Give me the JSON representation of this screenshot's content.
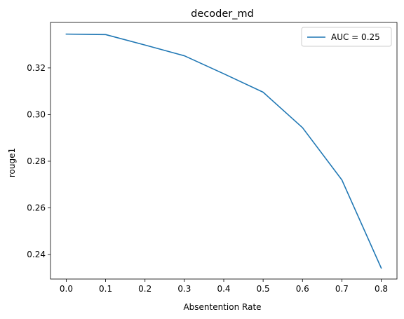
{
  "chart_data": {
    "type": "line",
    "title": "decoder_md",
    "xlabel": "Absentention Rate",
    "ylabel": "rouge1",
    "xlim": [
      -0.04,
      0.84
    ],
    "ylim": [
      0.2295,
      0.3395
    ],
    "xticks": [
      0.0,
      0.1,
      0.2,
      0.3,
      0.4,
      0.5,
      0.6,
      0.7,
      0.8
    ],
    "xtick_labels": [
      "0.0",
      "0.1",
      "0.2",
      "0.3",
      "0.4",
      "0.5",
      "0.6",
      "0.7",
      "0.8"
    ],
    "yticks": [
      0.24,
      0.26,
      0.28,
      0.3,
      0.32
    ],
    "ytick_labels": [
      "0.24",
      "0.26",
      "0.28",
      "0.30",
      "0.32"
    ],
    "grid": false,
    "legend_position": "upper right",
    "series": [
      {
        "name": "AUC = 0.25",
        "color": "#1f77b4",
        "x": [
          0.0,
          0.1,
          0.2,
          0.3,
          0.4,
          0.5,
          0.6,
          0.7,
          0.8
        ],
        "y": [
          0.3345,
          0.3343,
          0.3298,
          0.3252,
          0.3175,
          0.3096,
          0.2944,
          0.272,
          0.2342
        ]
      }
    ]
  }
}
